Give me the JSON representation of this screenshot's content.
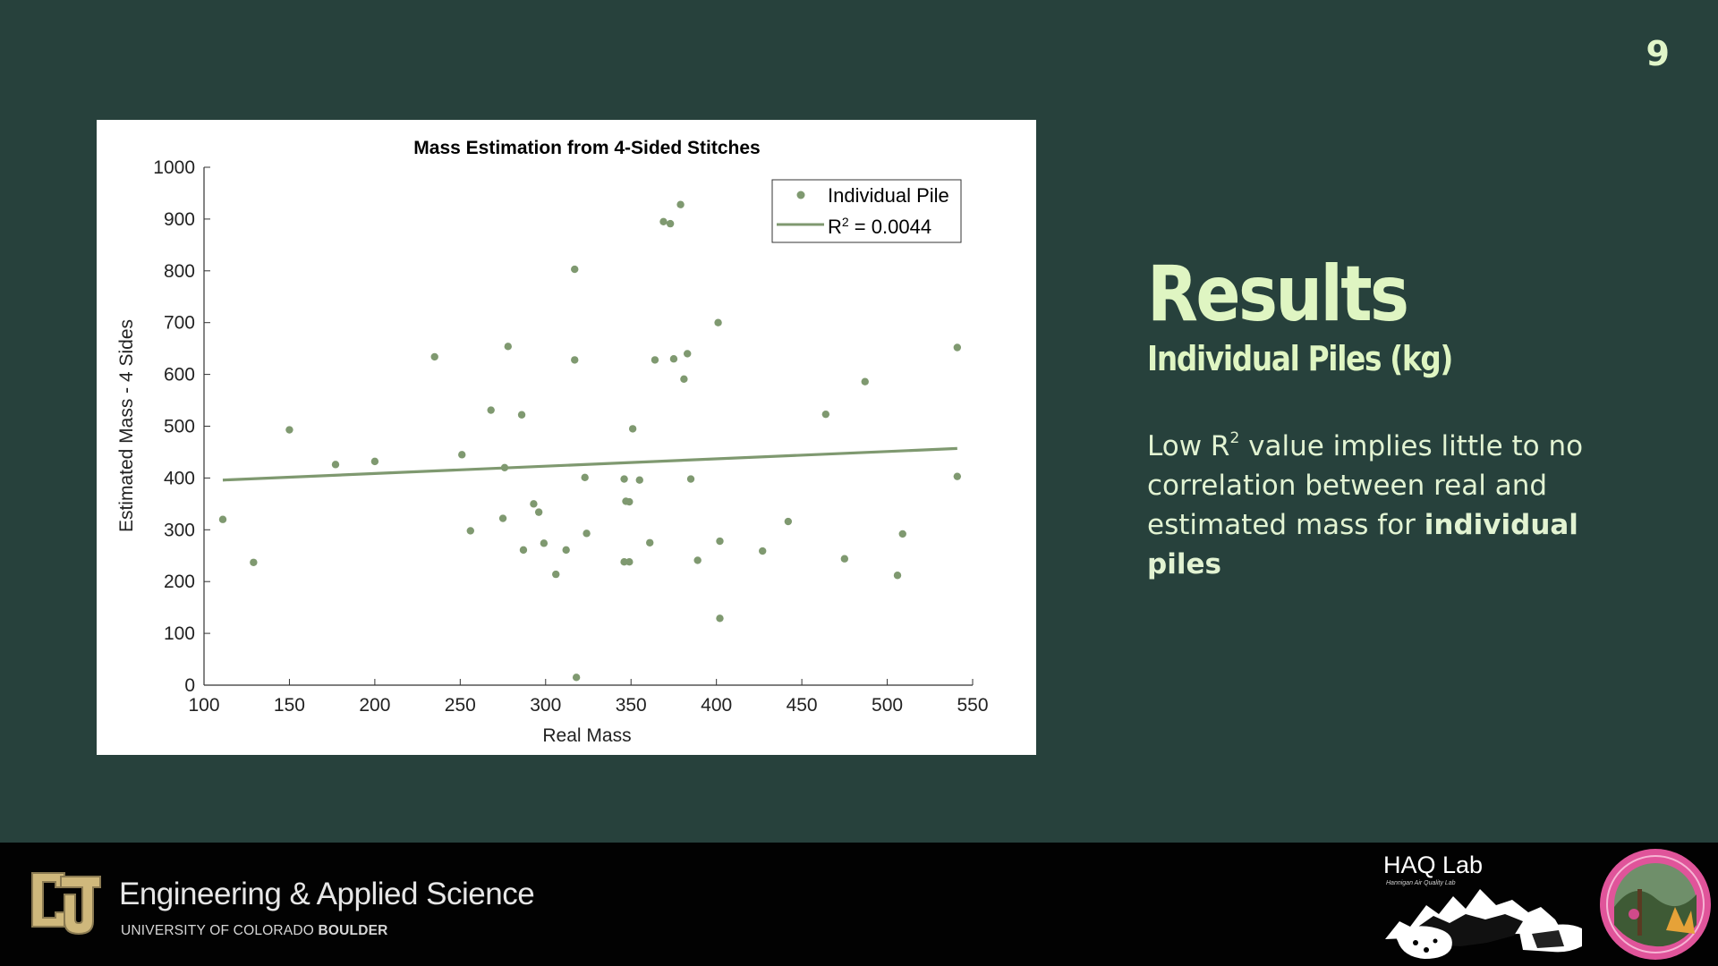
{
  "page": {
    "slide_number": "9"
  },
  "results": {
    "title": "Results",
    "subtitle": "Individual Piles (kg)",
    "body_pre": "Low R",
    "body_sup": "2",
    "body_mid": " value implies little to no correlation between real and estimated mass for ",
    "body_bold": "individual piles"
  },
  "footer": {
    "department": "Engineering & Applied Science",
    "university_prefix": "UNIVERSITY OF COLORADO ",
    "university_bold": "BOULDER",
    "lab_name": "HAQ Lab",
    "lab_subtitle": "Hannigan Air Quality Lab"
  },
  "colors": {
    "background": "#27413c",
    "accent_text": "#dff5c2",
    "series": "#7f9970",
    "footer": "#020202"
  },
  "chart_data": {
    "type": "scatter",
    "title": "Mass Estimation from 4-Sided Stitches",
    "xlabel": "Real Mass",
    "ylabel": "Estimated Mass - 4 Sides",
    "xlim": [
      100,
      550
    ],
    "ylim": [
      0,
      1000
    ],
    "xticks": [
      100,
      150,
      200,
      250,
      300,
      350,
      400,
      450,
      500,
      550
    ],
    "yticks": [
      0,
      100,
      200,
      300,
      400,
      500,
      600,
      700,
      800,
      900,
      1000
    ],
    "grid": false,
    "legend_position": "top-right",
    "series": [
      {
        "name": "Individual Pile",
        "type": "scatter",
        "color": "#7f9970",
        "points": [
          [
            111,
            320
          ],
          [
            129,
            237
          ],
          [
            150,
            493
          ],
          [
            177,
            426
          ],
          [
            200,
            432
          ],
          [
            235,
            634
          ],
          [
            251,
            445
          ],
          [
            256,
            298
          ],
          [
            268,
            531
          ],
          [
            275,
            322
          ],
          [
            276,
            420
          ],
          [
            278,
            654
          ],
          [
            286,
            522
          ],
          [
            287,
            261
          ],
          [
            293,
            350
          ],
          [
            296,
            334
          ],
          [
            299,
            274
          ],
          [
            306,
            214
          ],
          [
            312,
            261
          ],
          [
            317,
            803
          ],
          [
            317,
            628
          ],
          [
            318,
            15
          ],
          [
            323,
            401
          ],
          [
            324,
            293
          ],
          [
            346,
            398
          ],
          [
            346,
            238
          ],
          [
            347,
            355
          ],
          [
            349,
            354
          ],
          [
            349,
            238
          ],
          [
            351,
            495
          ],
          [
            355,
            396
          ],
          [
            361,
            275
          ],
          [
            364,
            628
          ],
          [
            369,
            895
          ],
          [
            373,
            891
          ],
          [
            375,
            630
          ],
          [
            379,
            928
          ],
          [
            381,
            591
          ],
          [
            383,
            640
          ],
          [
            385,
            398
          ],
          [
            389,
            241
          ],
          [
            401,
            700
          ],
          [
            402,
            278
          ],
          [
            402,
            129
          ],
          [
            427,
            259
          ],
          [
            442,
            316
          ],
          [
            464,
            523
          ],
          [
            475,
            244
          ],
          [
            487,
            586
          ],
          [
            506,
            212
          ],
          [
            509,
            292
          ],
          [
            541,
            652
          ],
          [
            541,
            403
          ]
        ]
      },
      {
        "name": "R",
        "name_superscript": "2",
        "name_suffix": " = 0.0044",
        "type": "line",
        "color": "#7f9970",
        "points": [
          [
            111,
            396
          ],
          [
            541,
            457
          ]
        ]
      }
    ]
  }
}
